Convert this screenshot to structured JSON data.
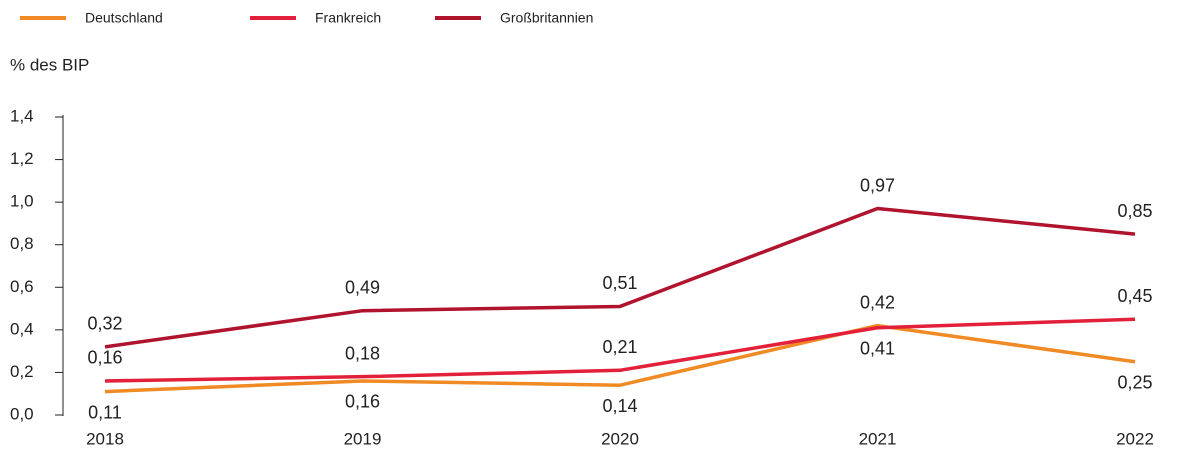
{
  "chart_data": {
    "type": "line",
    "y_label": "% des BIP",
    "categories": [
      "2018",
      "2019",
      "2020",
      "2021",
      "2022"
    ],
    "series": [
      {
        "name": "Deutschland",
        "color": "#f08a24",
        "values": [
          0.11,
          0.16,
          0.14,
          0.42,
          0.25
        ],
        "value_labels": [
          "0,11",
          "0,16",
          "0,14",
          "0,42",
          "0,25"
        ]
      },
      {
        "name": "Frankreich",
        "color": "#e3203a",
        "values": [
          0.16,
          0.18,
          0.21,
          0.41,
          0.45
        ],
        "value_labels": [
          "0,16",
          "0,18",
          "0,21",
          "0,41",
          "0,45"
        ]
      },
      {
        "name": "Großbritannien",
        "color": "#b0132d",
        "values": [
          0.32,
          0.49,
          0.51,
          0.97,
          0.85
        ],
        "value_labels": [
          "0,32",
          "0,49",
          "0,51",
          "0,97",
          "0,85"
        ]
      }
    ],
    "ylim": [
      0,
      1.4
    ],
    "yticks": [
      {
        "value": 0,
        "label": "0,0"
      },
      {
        "value": 0.2,
        "label": "0,2"
      },
      {
        "value": 0.4,
        "label": "0,4"
      },
      {
        "value": 0.6,
        "label": "0,6"
      },
      {
        "value": 0.8,
        "label": "0,8"
      },
      {
        "value": 1.0,
        "label": "1,0"
      },
      {
        "value": 1.2,
        "label": "1,2"
      },
      {
        "value": 1.4,
        "label": "1,4"
      }
    ],
    "legend": "top-left"
  }
}
